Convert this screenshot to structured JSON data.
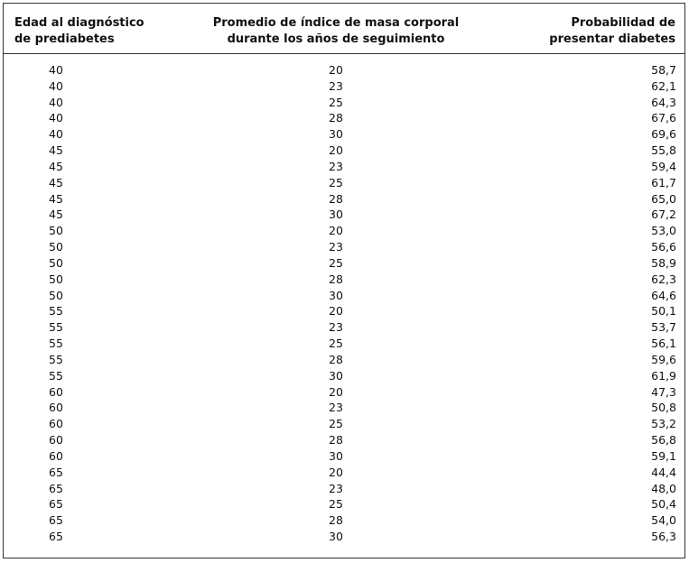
{
  "table": {
    "header": [
      [
        "Edad al diagnóstico",
        "de prediabetes"
      ],
      [
        "Promedio de índice de masa corporal",
        "durante los años de seguimiento"
      ],
      [
        "Probabilidad de",
        "presentar diabetes"
      ]
    ],
    "rows": [
      [
        "40",
        "20",
        "58,7"
      ],
      [
        "40",
        "23",
        "62,1"
      ],
      [
        "40",
        "25",
        "64,3"
      ],
      [
        "40",
        "28",
        "67,6"
      ],
      [
        "40",
        "30",
        "69,6"
      ],
      [
        "45",
        "20",
        "55,8"
      ],
      [
        "45",
        "23",
        "59,4"
      ],
      [
        "45",
        "25",
        "61,7"
      ],
      [
        "45",
        "28",
        "65,0"
      ],
      [
        "45",
        "30",
        "67,2"
      ],
      [
        "50",
        "20",
        "53,0"
      ],
      [
        "50",
        "23",
        "56,6"
      ],
      [
        "50",
        "25",
        "58,9"
      ],
      [
        "50",
        "28",
        "62,3"
      ],
      [
        "50",
        "30",
        "64,6"
      ],
      [
        "55",
        "20",
        "50,1"
      ],
      [
        "55",
        "23",
        "53,7"
      ],
      [
        "55",
        "25",
        "56,1"
      ],
      [
        "55",
        "28",
        "59,6"
      ],
      [
        "55",
        "30",
        "61,9"
      ],
      [
        "60",
        "20",
        "47,3"
      ],
      [
        "60",
        "23",
        "50,8"
      ],
      [
        "60",
        "25",
        "53,2"
      ],
      [
        "60",
        "28",
        "56,8"
      ],
      [
        "60",
        "30",
        "59,1"
      ],
      [
        "65",
        "20",
        "44,4"
      ],
      [
        "65",
        "23",
        "48,0"
      ],
      [
        "65",
        "25",
        "50,4"
      ],
      [
        "65",
        "28",
        "54,0"
      ],
      [
        "65",
        "30",
        "56,3"
      ]
    ]
  }
}
